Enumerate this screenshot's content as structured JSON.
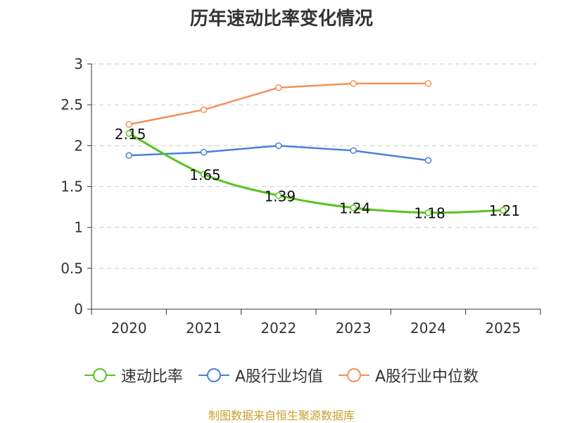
{
  "chart_data": {
    "type": "line",
    "title": "历年速动比率变化情况",
    "categories": [
      "2020",
      "2021",
      "2022",
      "2023",
      "2024",
      "2025"
    ],
    "ylim": [
      0,
      3
    ],
    "yticks": [
      "0",
      "0.5",
      "1",
      "1.5",
      "2",
      "2.5",
      "3"
    ],
    "grid": true,
    "legend_position": "bottom",
    "series": [
      {
        "name": "速动比率",
        "color": "#5ac21f",
        "values": [
          2.15,
          1.65,
          1.39,
          1.24,
          1.18,
          1.21
        ],
        "labels": [
          "2.15",
          "1.65",
          "1.39",
          "1.24",
          "1.18",
          "1.21"
        ]
      },
      {
        "name": "A股行业均值",
        "color": "#4a7fdb",
        "values": [
          1.88,
          1.92,
          2.0,
          1.94,
          1.82,
          null
        ]
      },
      {
        "name": "A股行业中位数",
        "color": "#f39058",
        "values": [
          2.26,
          2.44,
          2.71,
          2.76,
          2.76,
          null
        ]
      }
    ]
  },
  "legend": [
    {
      "label": "速动比率",
      "color": "#5ac21f"
    },
    {
      "label": "A股行业均值",
      "color": "#4a7fdb"
    },
    {
      "label": "A股行业中位数",
      "color": "#f39058"
    }
  ],
  "footer": {
    "source": "制图数据来自恒生聚源数据库"
  }
}
